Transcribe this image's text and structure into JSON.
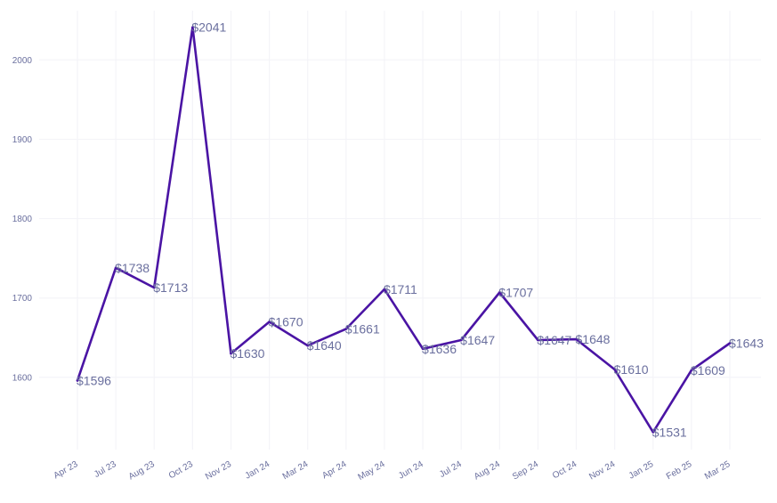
{
  "chart_data": {
    "type": "line",
    "categories": [
      "Apr 23",
      "Jul 23",
      "Aug 23",
      "Oct 23",
      "Nov 23",
      "Jan 24",
      "Mar 24",
      "Apr 24",
      "May 24",
      "Jun 24",
      "Jul 24",
      "Aug 24",
      "Sep 24",
      "Oct 24",
      "Nov 24",
      "Jan 25",
      "Feb 25",
      "Mar 25"
    ],
    "values": [
      1596,
      1738,
      1713,
      2041,
      1630,
      1670,
      1640,
      1661,
      1711,
      1636,
      1647,
      1707,
      1647,
      1648,
      1610,
      1531,
      1609,
      1643
    ],
    "data_labels": [
      "$1596",
      "$1738",
      "$1713",
      "$2041",
      "$1630",
      "$1670",
      "$1640",
      "$1661",
      "$1711",
      "$1636",
      "$1647",
      "$1707",
      "$1647",
      "$1648",
      "$1610",
      "$1531",
      "$1609",
      "$1643"
    ],
    "y_ticks": [
      1600,
      1700,
      1800,
      1900,
      2000
    ],
    "ylim": [
      1509,
      2062
    ],
    "title": "",
    "xlabel": "",
    "ylabel": "",
    "grid": true,
    "legend": "none",
    "colors": {
      "line": "#4a14a4",
      "text": "#6a6f9e",
      "grid": "#f4f4f8"
    }
  }
}
